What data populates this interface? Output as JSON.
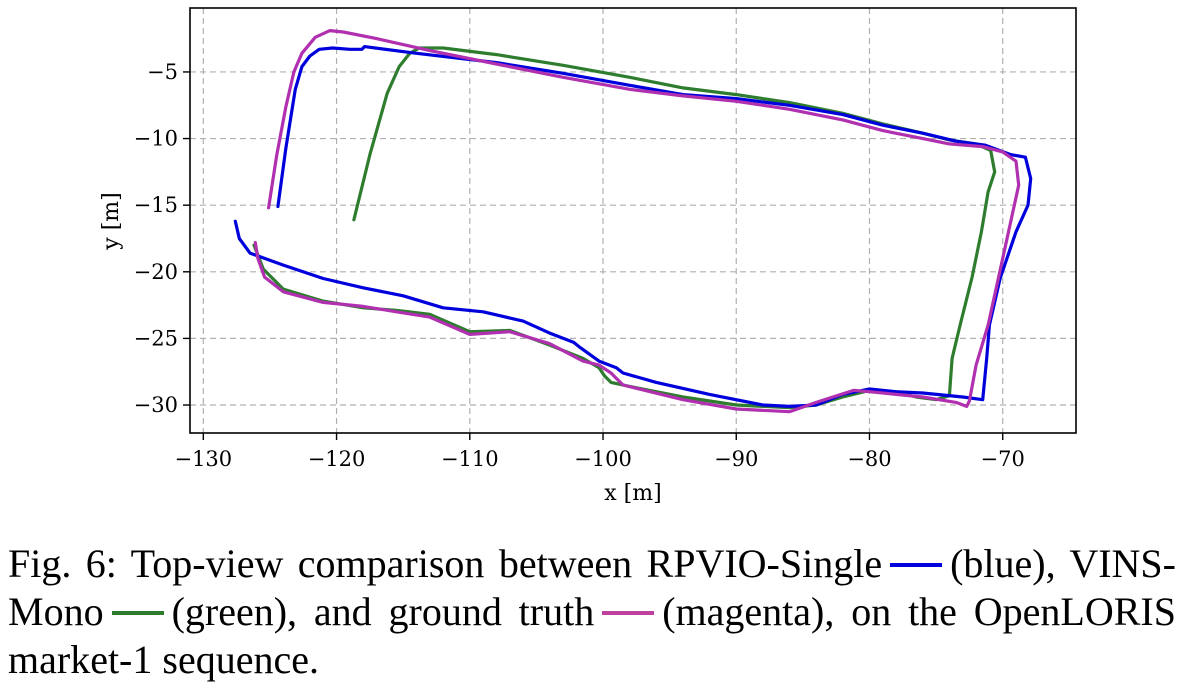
{
  "chart_data": {
    "type": "line",
    "xlabel": "x [m]",
    "ylabel": "y [m]",
    "xlim": [
      -131,
      -64.5
    ],
    "ylim": [
      -32.1,
      -0.2
    ],
    "x_ticks": [
      -130,
      -120,
      -110,
      -100,
      -90,
      -80,
      -70
    ],
    "y_ticks": [
      -5,
      -10,
      -15,
      -20,
      -25,
      -30
    ],
    "x_tick_labels": [
      "−130",
      "−120",
      "−110",
      "−100",
      "−90",
      "−80",
      "−70"
    ],
    "y_tick_labels": [
      "−5",
      "−10",
      "−15",
      "−20",
      "−25",
      "−30"
    ],
    "grid": true,
    "series": [
      {
        "color": "#2e7d2e",
        "x": [
          -118.7,
          -117.5,
          -116.2,
          -115.3,
          -114.5,
          -113.8,
          -112,
          -108,
          -103,
          -98,
          -94,
          -90,
          -86,
          -82,
          -79,
          -76,
          -74,
          -72,
          -70.9,
          -70.6,
          -71.1,
          -71.6,
          -72.3,
          -73.2,
          -73.8,
          -74.0,
          -75,
          -76.5,
          -78,
          -80,
          -82,
          -84,
          -86,
          -90,
          -94,
          -98,
          -99.4,
          -99.9,
          -100.3,
          -101.5,
          -104,
          -107,
          -110,
          -113,
          -115.5,
          -118,
          -121,
          -124,
          -125.5,
          -126.2
        ],
        "y": [
          -16.1,
          -11.2,
          -6.6,
          -4.6,
          -3.6,
          -3.2,
          -3.2,
          -3.7,
          -4.5,
          -5.4,
          -6.2,
          -6.7,
          -7.3,
          -8.1,
          -8.9,
          -9.6,
          -10.1,
          -10.4,
          -10.9,
          -12.5,
          -14.0,
          -17.0,
          -20.4,
          -24.0,
          -26.5,
          -29.3,
          -29.6,
          -29.4,
          -29.0,
          -28.9,
          -29.4,
          -30.0,
          -30.2,
          -30.0,
          -29.4,
          -28.6,
          -28.3,
          -27.8,
          -27.2,
          -26.5,
          -25.5,
          -24.4,
          -24.5,
          -23.2,
          -22.9,
          -22.7,
          -22.2,
          -21.3,
          -19.8,
          -18.0
        ]
      },
      {
        "color": "#0000dd",
        "x": [
          -124.4,
          -123.8,
          -123.1,
          -122.6,
          -122.0,
          -121.3,
          -120.3,
          -119,
          -118.1,
          -117.9,
          -114,
          -108,
          -103,
          -98,
          -94,
          -90,
          -86,
          -82,
          -79,
          -76,
          -73.5,
          -71.3,
          -69.4,
          -68.3,
          -67.9,
          -68.1,
          -69.0,
          -70.2,
          -71.0,
          -71.2,
          -71.5,
          -73,
          -76,
          -78,
          -80,
          -82,
          -84,
          -86,
          -88,
          -92,
          -96,
          -98.5,
          -99.0,
          -100.3,
          -101.7,
          -102.2,
          -104,
          -106,
          -109,
          -112,
          -115,
          -118,
          -121,
          -124,
          -126.5,
          -127.3,
          -127.6
        ],
        "y": [
          -15.1,
          -10.7,
          -6.3,
          -4.6,
          -3.8,
          -3.3,
          -3.2,
          -3.3,
          -3.3,
          -3.1,
          -3.6,
          -4.3,
          -5.1,
          -6.0,
          -6.7,
          -7.0,
          -7.5,
          -8.2,
          -9.0,
          -9.6,
          -10.2,
          -10.5,
          -11.2,
          -11.4,
          -13.0,
          -15.0,
          -17.0,
          -20.5,
          -24.0,
          -26.5,
          -29.6,
          -29.4,
          -29.1,
          -29.0,
          -28.8,
          -29.2,
          -30.0,
          -30.1,
          -30.0,
          -29.2,
          -28.3,
          -27.6,
          -27.2,
          -26.7,
          -25.7,
          -25.3,
          -24.6,
          -23.7,
          -23.0,
          -22.7,
          -21.8,
          -21.2,
          -20.5,
          -19.5,
          -18.6,
          -17.5,
          -16.2
        ]
      },
      {
        "color": "#b030b0",
        "x": [
          -125.1,
          -124.5,
          -123.8,
          -123.2,
          -122.6,
          -121.6,
          -120.5,
          -119.5,
          -117,
          -113,
          -108,
          -103,
          -98,
          -94,
          -90,
          -86,
          -82,
          -79,
          -76,
          -74,
          -71.5,
          -70.0,
          -69.0,
          -68.8,
          -69.3,
          -70.0,
          -71.1,
          -72.0,
          -72.5,
          -72.7,
          -73.5,
          -76,
          -78,
          -80,
          -81.2,
          -84,
          -86,
          -90,
          -94,
          -98.5,
          -99.4,
          -100.3,
          -101.5,
          -104,
          -107,
          -110,
          -113,
          -115.5,
          -118,
          -121,
          -124,
          -125.4,
          -125.9,
          -126.1
        ],
        "y": [
          -15.2,
          -11.3,
          -7.6,
          -5.0,
          -3.6,
          -2.4,
          -1.9,
          -2.0,
          -2.5,
          -3.4,
          -4.4,
          -5.4,
          -6.3,
          -6.8,
          -7.2,
          -7.8,
          -8.6,
          -9.4,
          -10.0,
          -10.4,
          -10.6,
          -11.0,
          -11.7,
          -13.5,
          -15.8,
          -19.0,
          -24.0,
          -27.0,
          -29.7,
          -30.1,
          -29.8,
          -29.4,
          -29.2,
          -29.0,
          -28.9,
          -29.8,
          -30.5,
          -30.3,
          -29.6,
          -28.5,
          -27.6,
          -27.0,
          -26.7,
          -25.4,
          -24.5,
          -24.7,
          -23.4,
          -23.0,
          -22.6,
          -22.3,
          -21.5,
          -20.4,
          -19.0,
          -17.8
        ]
      }
    ]
  },
  "caption": {
    "part1": "Fig. 6: Top-view comparison between RPVIO-Single",
    "part2": "(blue), VINS-Mono",
    "part3": "(green), and ground truth",
    "part4": "(magenta), on the OpenLORIS market-1 sequence."
  },
  "colors": {
    "blue": "#0000dd",
    "green": "#2e7d2e",
    "magenta": "#c040a0"
  }
}
